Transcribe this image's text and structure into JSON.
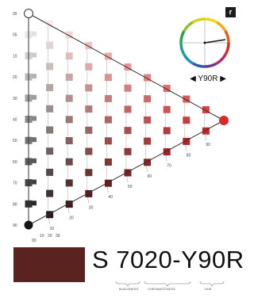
{
  "notation": {
    "text": "S 7020-Y90R",
    "patch_color": "#5a2320",
    "badge": "r",
    "hue_label": "◀ Y90R ▶"
  },
  "legend": {
    "blackness": "BLACKNESS",
    "chromaticness": "CHROMATICNESS",
    "hue": "HUE"
  },
  "scale": {
    "blackness_ticks": [
      "00",
      "05",
      "10",
      "20",
      "30",
      "40",
      "50",
      "60",
      "70",
      "80",
      "90"
    ],
    "chromaticness_ticks": [
      "10",
      "20",
      "30",
      "40",
      "50",
      "60",
      "70",
      "80",
      "90"
    ],
    "bottom_ticks": [
      "00",
      "10",
      "20",
      "30"
    ]
  },
  "colors": {
    "hue_red": "#d72b2a",
    "gray_dark": "#1b1b1b",
    "line": "#333333"
  }
}
